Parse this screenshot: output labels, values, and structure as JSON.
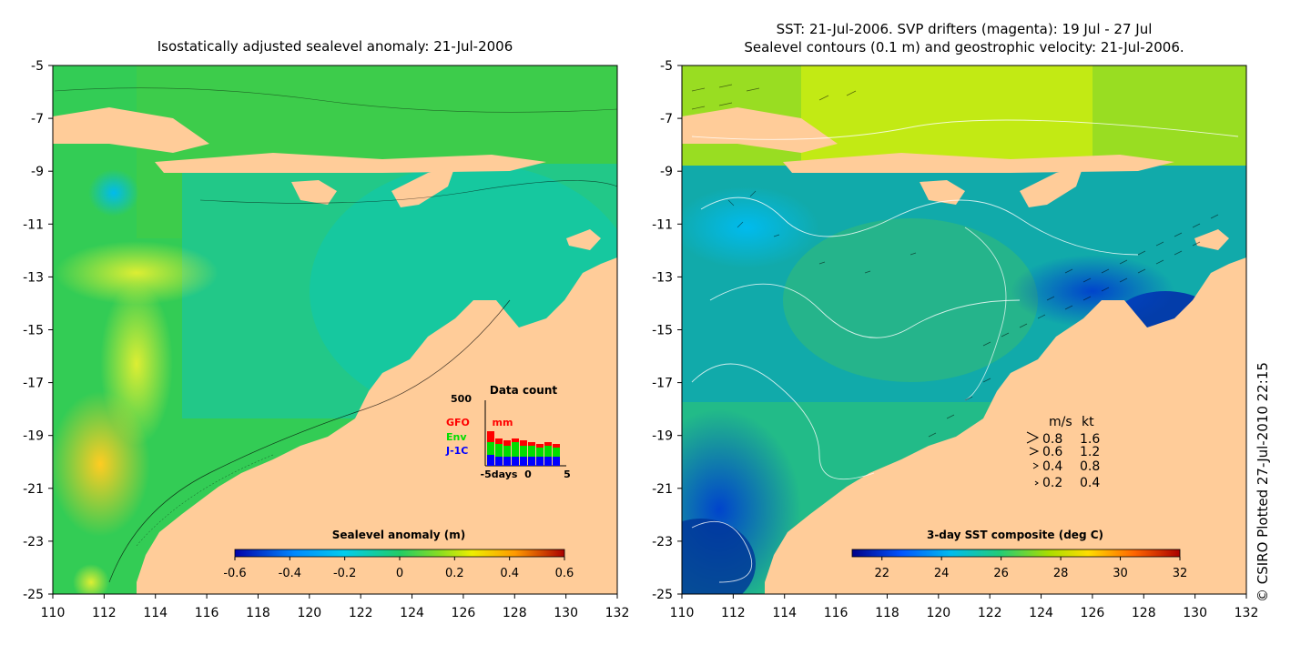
{
  "chart_data": [
    {
      "type": "heatmap",
      "title": "Isostatically adjusted sealevel anomaly: 21-Jul-2006",
      "x_ticks": [
        "110",
        "112",
        "114",
        "116",
        "118",
        "120",
        "122",
        "124",
        "126",
        "128",
        "130",
        "132"
      ],
      "y_ticks": [
        "-5",
        "-7",
        "-9",
        "-11",
        "-13",
        "-15",
        "-17",
        "-19",
        "-21",
        "-23",
        "-25"
      ],
      "xlim": [
        110,
        132
      ],
      "ylim": [
        -25,
        -5
      ],
      "colorbar": {
        "label": "Sealevel anomaly (m)",
        "ticks": [
          "-0.6",
          "-0.4",
          "-0.2",
          "0",
          "0.2",
          "0.4",
          "0.6"
        ],
        "range": [
          -0.6,
          0.6
        ]
      },
      "inset": {
        "title": "Data count",
        "y_tick": "500",
        "x_labels": [
          "-5days",
          "0",
          "5"
        ],
        "unit": "mm",
        "series": [
          {
            "name": "GFO",
            "color": "#ff0000"
          },
          {
            "name": "Env",
            "color": "#00dd00"
          },
          {
            "name": "J-1C",
            "color": "#0000ff"
          }
        ]
      }
    },
    {
      "type": "heatmap",
      "title_line1": "SST: 21-Jul-2006. SVP drifters (magenta): 19 Jul - 27 Jul",
      "title_line2": "Sealevel contours (0.1 m) and geostrophic velocity: 21-Jul-2006.",
      "x_ticks": [
        "110",
        "112",
        "114",
        "116",
        "118",
        "120",
        "122",
        "124",
        "126",
        "128",
        "130",
        "132"
      ],
      "y_ticks": [
        "-5",
        "-7",
        "-9",
        "-11",
        "-13",
        "-15",
        "-17",
        "-19",
        "-21",
        "-23",
        "-25"
      ],
      "xlim": [
        110,
        132
      ],
      "ylim": [
        -25,
        -5
      ],
      "colorbar": {
        "label": "3-day SST composite (deg C)",
        "ticks": [
          "22",
          "24",
          "26",
          "28",
          "30",
          "32"
        ],
        "range": [
          21,
          32
        ]
      },
      "velocity_legend": {
        "header_ms": "m/s",
        "header_kt": "kt",
        "rows": [
          {
            "ms": "0.8",
            "kt": "1.6"
          },
          {
            "ms": "0.6",
            "kt": "1.2"
          },
          {
            "ms": "0.4",
            "kt": "0.8"
          },
          {
            "ms": "0.2",
            "kt": "0.4"
          }
        ]
      }
    }
  ],
  "credit": "© CSIRO Plotted 27-Jul-2010 22:15",
  "colors": {
    "land": "#ffcc99",
    "ocean_mid": "#33cc66"
  }
}
